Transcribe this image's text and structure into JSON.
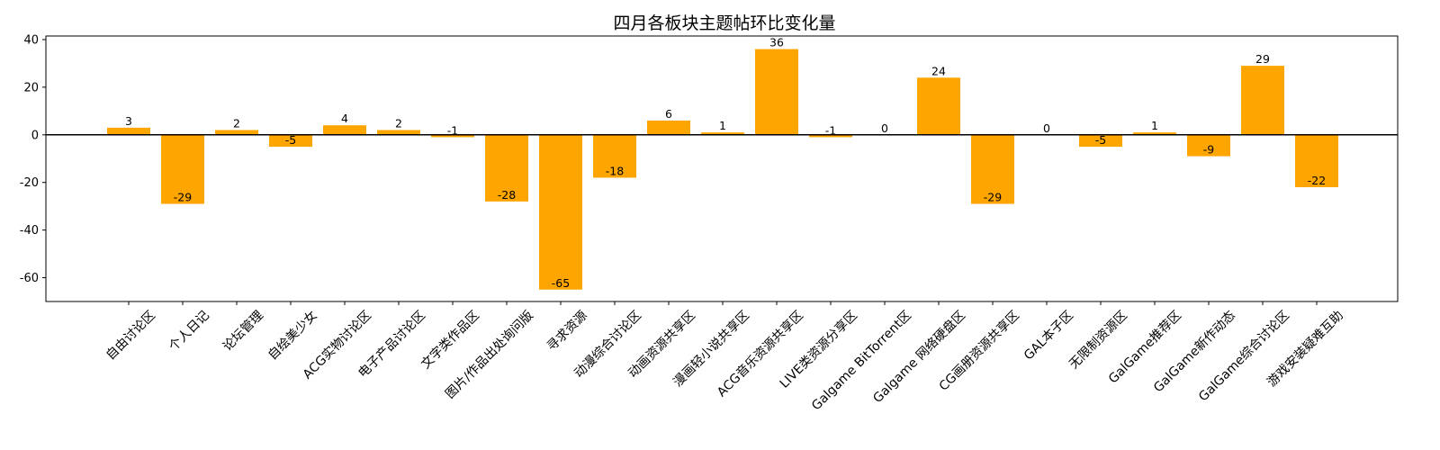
{
  "chart_data": {
    "type": "bar",
    "title": "四月各板块主题帖环比变化量",
    "xlabel": "",
    "ylabel": "",
    "categories": [
      "自由讨论区",
      "个人日记",
      "论坛管理",
      "自绘美少女",
      "ACG实物讨论区",
      "电子产品讨论区",
      "文字类作品区",
      "图片/作品出处询问版",
      "寻求资源",
      "动漫综合讨论区",
      "动画资源共享区",
      "漫画轻小说共享区",
      "ACG音乐资源共享区",
      "LIVE类资源分享区",
      "Galgame BitTorrent区",
      "Galgame 网络硬盘区",
      "CG画册资源共享区",
      "GAL本子区",
      "无限制资源区",
      "GalGame推荐区",
      "GalGame新作动态",
      "GalGame综合讨论区",
      "游戏安装疑难互助"
    ],
    "values": [
      3,
      -29,
      2,
      -5,
      4,
      2,
      -1,
      -28,
      -65,
      -18,
      6,
      1,
      36,
      -1,
      0,
      24,
      -29,
      0,
      -5,
      1,
      -9,
      29,
      -22
    ],
    "ylim": [
      -70,
      41.5
    ],
    "yticks": [
      -60,
      -40,
      -20,
      0,
      20,
      40
    ],
    "bar_color": "#ffa500",
    "zero_line_color": "#000000",
    "grid": false,
    "legend": "none"
  }
}
